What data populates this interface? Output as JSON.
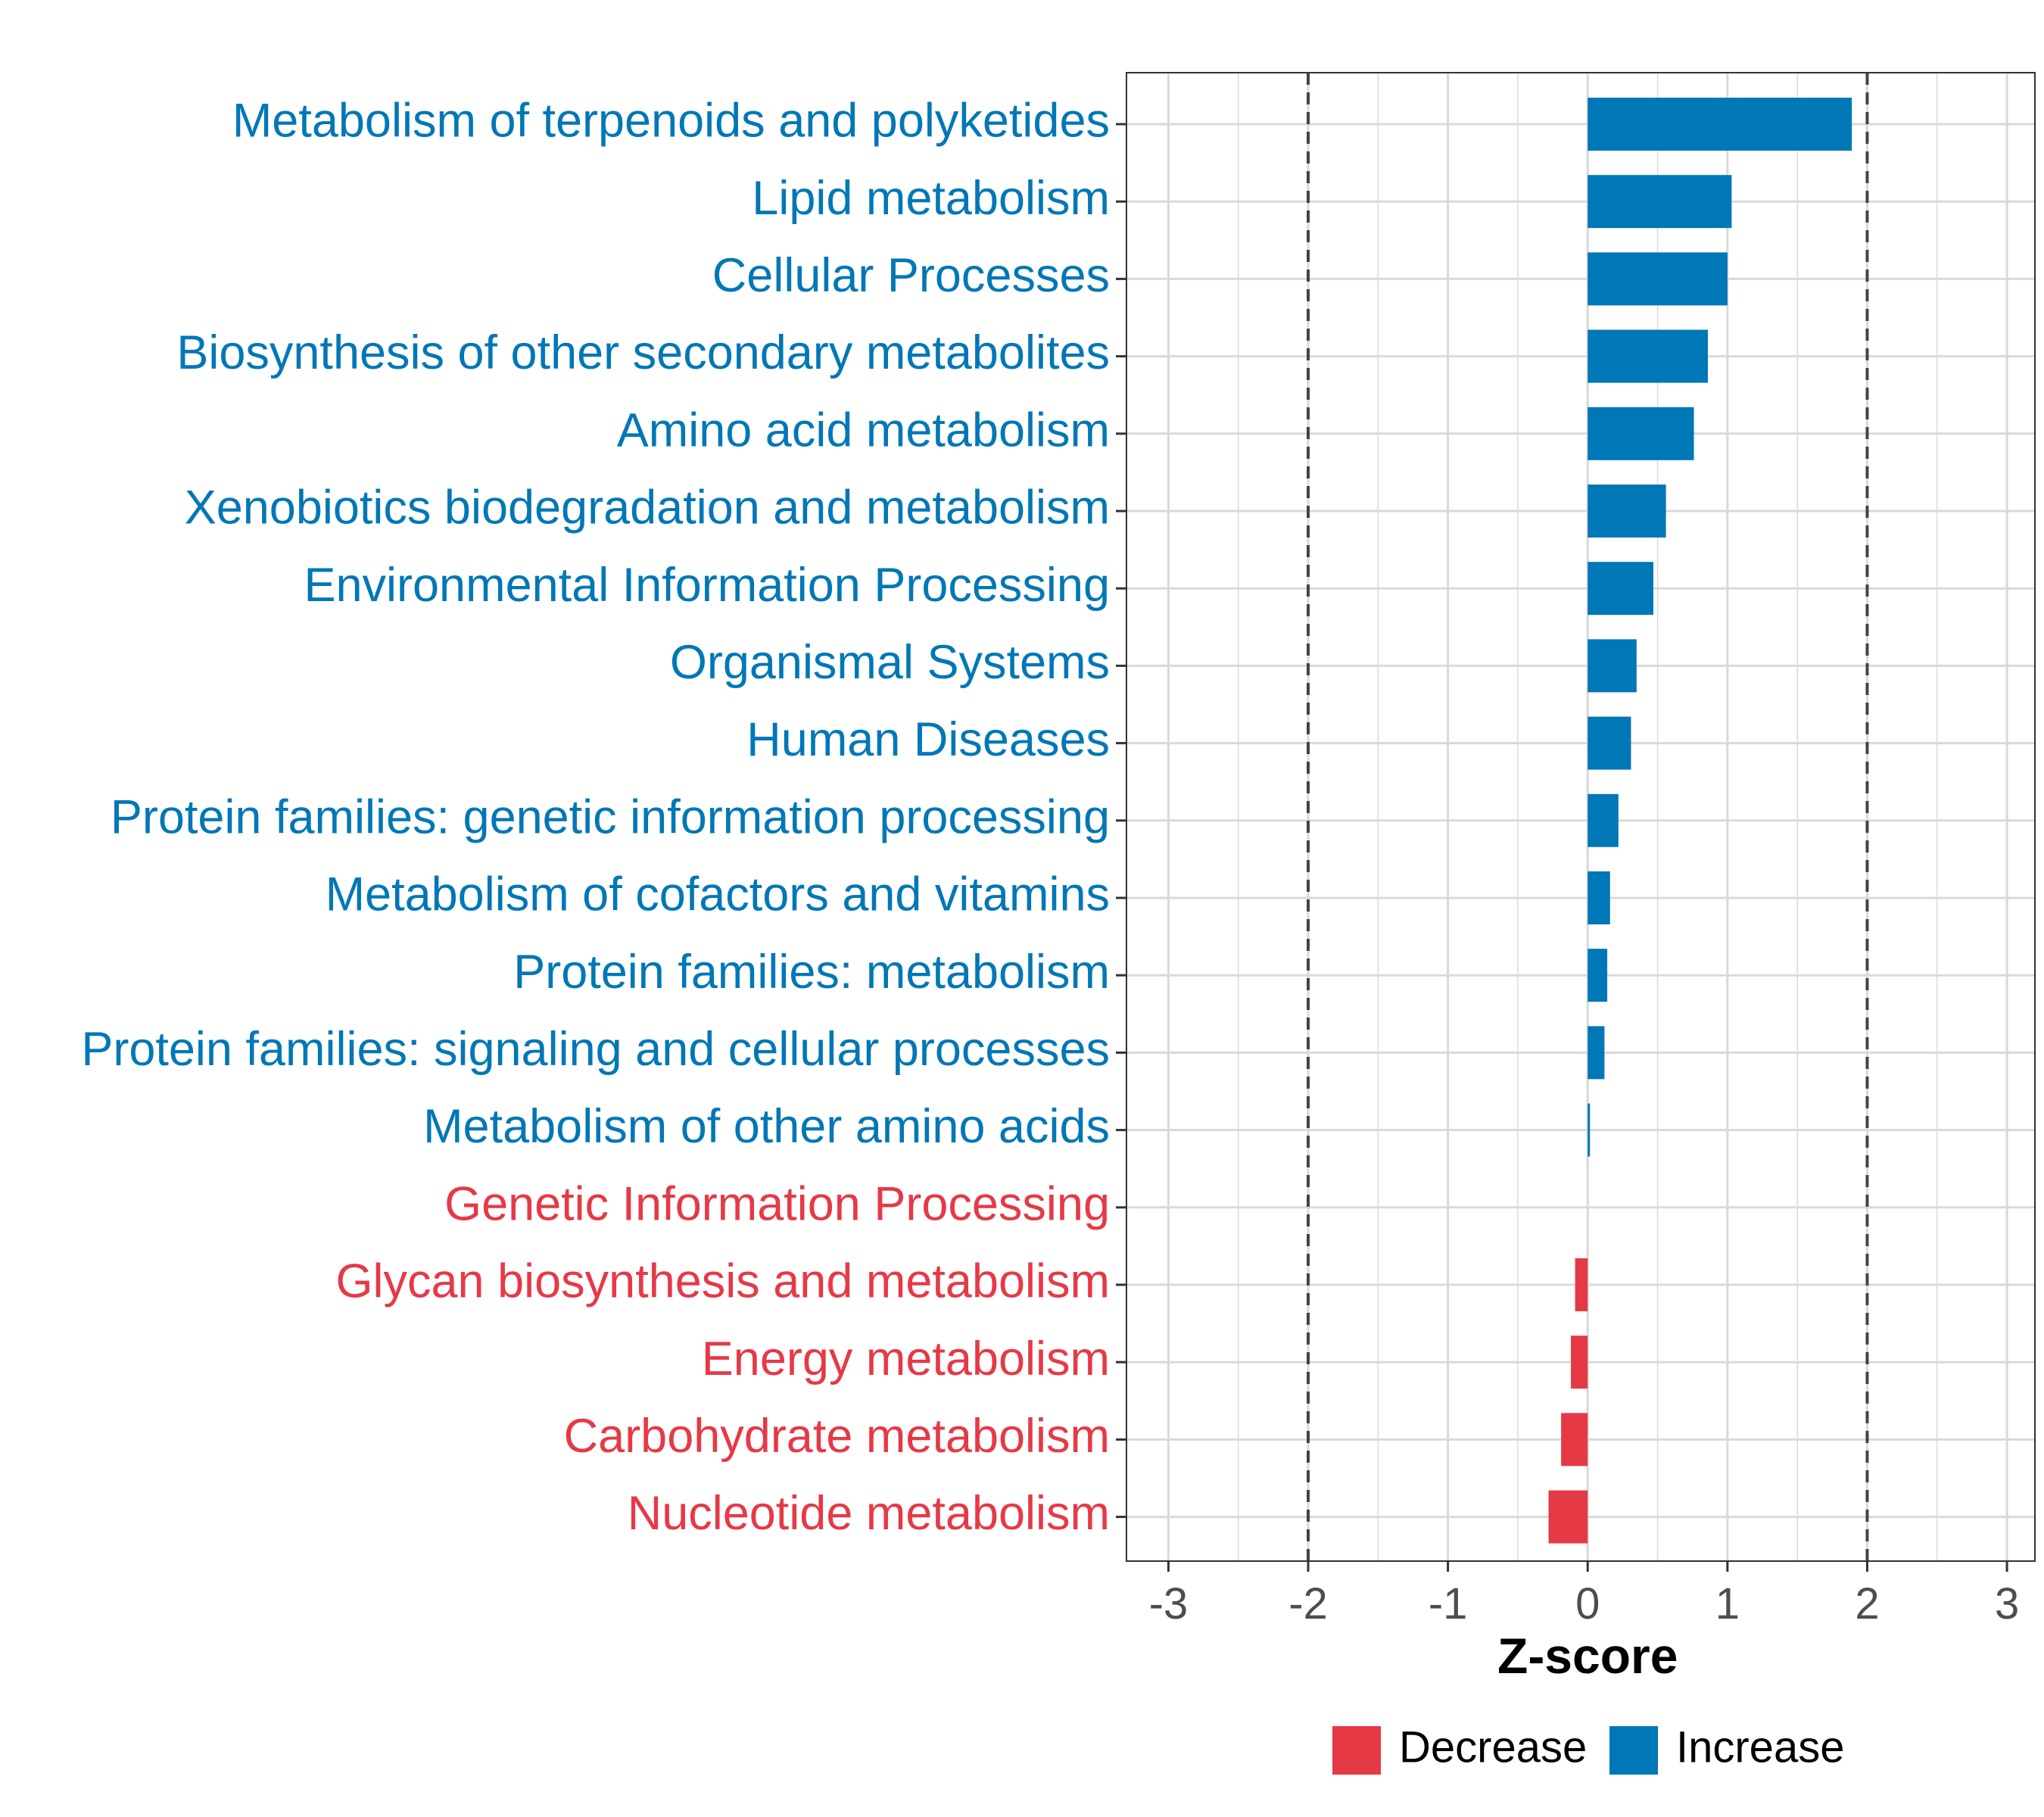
{
  "chart_data": {
    "type": "bar",
    "orientation": "horizontal",
    "title": "",
    "xlabel": "Z-score",
    "ylabel": "",
    "xlim": [
      -3.3,
      3.2
    ],
    "xticks": [
      -3,
      -2,
      -1,
      0,
      1,
      2,
      3
    ],
    "threshold_lines": [
      -2,
      2
    ],
    "grid": true,
    "legend_position": "bottom",
    "categories": [
      "Metabolism of terpenoids and polyketides",
      "Lipid metabolism",
      "Cellular Processes",
      "Biosynthesis of other secondary metabolites",
      "Amino acid metabolism",
      "Xenobiotics biodegradation and metabolism",
      "Environmental Information Processing",
      "Organismal Systems",
      "Human Diseases",
      "Protein families: genetic information processing",
      "Metabolism of cofactors and vitamins",
      "Protein families: metabolism",
      "Protein families: signaling and cellular processes",
      "Metabolism of other amino acids",
      "Genetic Information Processing",
      "Glycan biosynthesis and metabolism",
      "Energy metabolism",
      "Carbohydrate metabolism",
      "Nucleotide metabolism"
    ],
    "values": [
      1.89,
      1.03,
      1.0,
      0.86,
      0.76,
      0.56,
      0.47,
      0.35,
      0.31,
      0.22,
      0.16,
      0.14,
      0.12,
      0.01,
      0.0,
      -0.09,
      -0.12,
      -0.19,
      -0.28
    ],
    "groups": [
      "Increase",
      "Increase",
      "Increase",
      "Increase",
      "Increase",
      "Increase",
      "Increase",
      "Increase",
      "Increase",
      "Increase",
      "Increase",
      "Increase",
      "Increase",
      "Increase",
      "Decrease",
      "Decrease",
      "Decrease",
      "Decrease",
      "Decrease"
    ],
    "legend": [
      {
        "name": "Decrease",
        "color": "#E63946"
      },
      {
        "name": "Increase",
        "color": "#0077B6"
      }
    ]
  },
  "colors": {
    "increase": "#0077B6",
    "decrease": "#E63946",
    "grid": "#d9d9d9",
    "threshold": "#444444"
  }
}
